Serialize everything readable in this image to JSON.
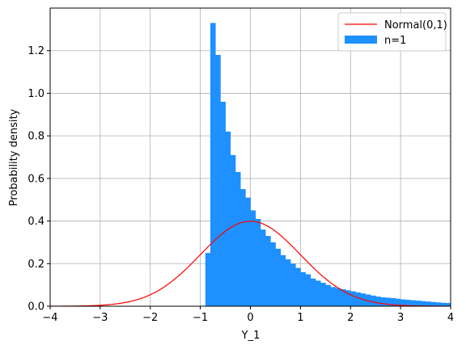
{
  "chart_data": {
    "type": "bar",
    "xlabel": "Y_1",
    "ylabel": "Probability density",
    "xlim": [
      -4,
      4
    ],
    "ylim": [
      0,
      1.4
    ],
    "xticks": [
      -4,
      -3,
      -2,
      -1,
      0,
      1,
      2,
      3,
      4
    ],
    "xtick_labels": [
      "−4",
      "−3",
      "−2",
      "−1",
      "0",
      "1",
      "2",
      "3",
      "4"
    ],
    "yticks": [
      0.0,
      0.2,
      0.4,
      0.6,
      0.8,
      1.0,
      1.2
    ],
    "ytick_labels": [
      "0.0",
      "0.2",
      "0.4",
      "0.6",
      "0.8",
      "1.0",
      "1.2"
    ],
    "grid": true,
    "legend_position": "top-right",
    "colors": {
      "histogram": "#1e90ff",
      "normal_curve": "#ff0000",
      "grid": "#b0b0b0"
    },
    "series": [
      {
        "name": "Normal(0,1)",
        "kind": "line",
        "formula": "standard normal pdf"
      },
      {
        "name": "n=1",
        "kind": "histogram",
        "bin_width": 0.1,
        "bins": [
          [
            -0.9,
            0.25
          ],
          [
            -0.8,
            1.33
          ],
          [
            -0.7,
            1.18
          ],
          [
            -0.6,
            0.96
          ],
          [
            -0.5,
            0.82
          ],
          [
            -0.4,
            0.71
          ],
          [
            -0.3,
            0.63
          ],
          [
            -0.2,
            0.55
          ],
          [
            -0.1,
            0.51
          ],
          [
            0.0,
            0.45
          ],
          [
            0.1,
            0.41
          ],
          [
            0.2,
            0.36
          ],
          [
            0.3,
            0.33
          ],
          [
            0.4,
            0.3
          ],
          [
            0.5,
            0.27
          ],
          [
            0.6,
            0.24
          ],
          [
            0.7,
            0.22
          ],
          [
            0.8,
            0.2
          ],
          [
            0.9,
            0.18
          ],
          [
            1.0,
            0.16
          ],
          [
            1.1,
            0.15
          ],
          [
            1.2,
            0.13
          ],
          [
            1.3,
            0.12
          ],
          [
            1.4,
            0.11
          ],
          [
            1.5,
            0.1
          ],
          [
            1.6,
            0.09
          ],
          [
            1.7,
            0.085
          ],
          [
            1.8,
            0.08
          ],
          [
            1.9,
            0.075
          ],
          [
            2.0,
            0.07
          ],
          [
            2.1,
            0.065
          ],
          [
            2.2,
            0.06
          ],
          [
            2.3,
            0.055
          ],
          [
            2.4,
            0.05
          ],
          [
            2.5,
            0.045
          ],
          [
            2.6,
            0.042
          ],
          [
            2.7,
            0.04
          ],
          [
            2.8,
            0.038
          ],
          [
            2.9,
            0.035
          ],
          [
            3.0,
            0.032
          ],
          [
            3.1,
            0.03
          ],
          [
            3.2,
            0.028
          ],
          [
            3.3,
            0.026
          ],
          [
            3.4,
            0.024
          ],
          [
            3.5,
            0.022
          ],
          [
            3.6,
            0.02
          ],
          [
            3.7,
            0.018
          ],
          [
            3.8,
            0.016
          ],
          [
            3.9,
            0.015
          ]
        ]
      }
    ]
  }
}
